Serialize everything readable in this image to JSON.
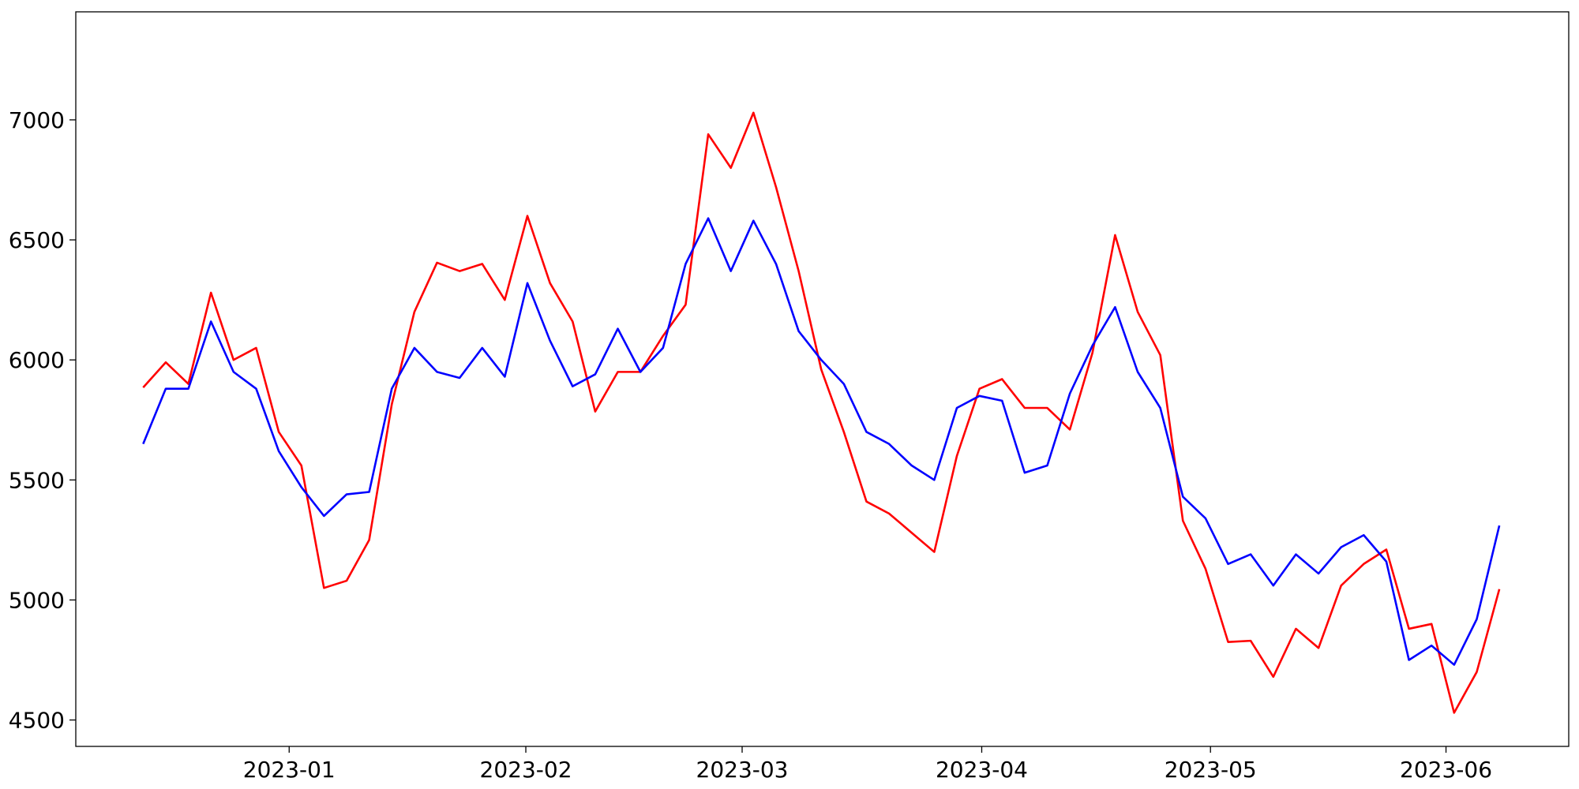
{
  "chart_data": {
    "type": "line",
    "xlim": [
      -2.98,
      63.07
    ],
    "xticks": [
      {
        "value": 6.46,
        "label": "2023-01"
      },
      {
        "value": 16.93,
        "label": "2023-02"
      },
      {
        "value": 26.5,
        "label": "2023-03"
      },
      {
        "value": 37.1,
        "label": "2023-04"
      },
      {
        "value": 47.22,
        "label": "2023-05"
      },
      {
        "value": 57.64,
        "label": "2023-06"
      }
    ],
    "ylim": [
      4390,
      7450
    ],
    "yticks": [
      4500,
      5000,
      5500,
      6000,
      6500,
      7000
    ],
    "grid": false,
    "series": [
      {
        "color": "#ff0000",
        "values": [
          5885,
          5990,
          5900,
          6280,
          6000,
          6050,
          5700,
          5560,
          5050,
          5080,
          5250,
          5815,
          6200,
          6405,
          6370,
          6400,
          6250,
          6600,
          6320,
          6160,
          5785,
          5950,
          5950,
          6100,
          6230,
          6940,
          6800,
          7030,
          6720,
          6370,
          5960,
          5700,
          5410,
          5360,
          5280,
          5200,
          5600,
          5880,
          5920,
          5800,
          5800,
          5710,
          6030,
          6520,
          6200,
          6020,
          5330,
          5130,
          4825,
          4830,
          4680,
          4880,
          4800,
          5060,
          5150,
          5210,
          4880,
          4900,
          4530,
          4700,
          5045
        ]
      },
      {
        "color": "#0000ff",
        "values": [
          5650,
          5880,
          5880,
          6160,
          5950,
          5880,
          5620,
          5470,
          5350,
          5440,
          5450,
          5880,
          6050,
          5950,
          5925,
          6050,
          5930,
          6320,
          6080,
          5890,
          5940,
          6130,
          5950,
          6050,
          6400,
          6590,
          6370,
          6580,
          6400,
          6120,
          6000,
          5900,
          5700,
          5650,
          5560,
          5500,
          5800,
          5850,
          5830,
          5530,
          5560,
          5860,
          6060,
          6220,
          5950,
          5800,
          5430,
          5340,
          5150,
          5190,
          5060,
          5190,
          5110,
          5220,
          5270,
          5160,
          4750,
          4810,
          4730,
          4920,
          5310
        ]
      }
    ]
  }
}
